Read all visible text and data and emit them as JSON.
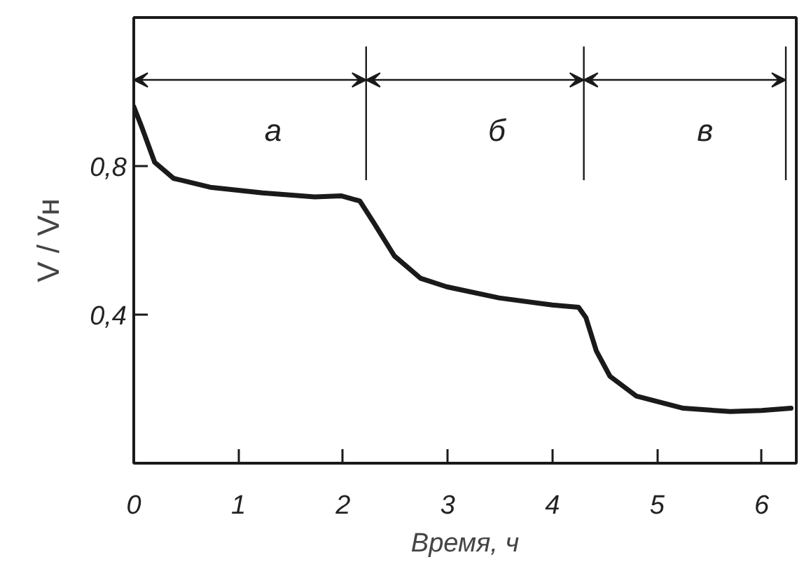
{
  "chart_data": {
    "type": "line",
    "xlabel": "Время, ч",
    "ylabel": "V / Vн",
    "xlim": [
      0,
      6.33
    ],
    "ylim": [
      0,
      1.2
    ],
    "xticks": [
      0,
      1,
      2,
      3,
      4,
      5,
      6
    ],
    "yticks": [
      {
        "value": 0.4,
        "label": "0,4"
      },
      {
        "value": 0.8,
        "label": "0,8"
      }
    ],
    "grid": false,
    "marker": "none",
    "line_style": "solid",
    "series": [
      {
        "color": "#1a1a1a",
        "x": [
          0,
          0.075,
          0.2,
          0.38,
          0.73,
          1.23,
          1.73,
          1.98,
          2.16,
          2.29,
          2.49,
          2.74,
          2.99,
          3.49,
          4.0,
          4.25,
          4.32,
          4.42,
          4.55,
          4.8,
          5.25,
          5.7,
          6.0,
          6.28
        ],
        "values": [
          0.96,
          0.906,
          0.81,
          0.767,
          0.743,
          0.728,
          0.717,
          0.72,
          0.706,
          0.649,
          0.558,
          0.498,
          0.475,
          0.445,
          0.426,
          0.42,
          0.392,
          0.302,
          0.234,
          0.181,
          0.148,
          0.139,
          0.142,
          0.148
        ]
      }
    ],
    "ref_lines": [
      {
        "axis": "x",
        "value": 2.22
      },
      {
        "axis": "x",
        "value": 4.3
      },
      {
        "axis": "x",
        "value": 6.23
      }
    ],
    "annotations": [
      "а",
      "б",
      "в"
    ]
  }
}
